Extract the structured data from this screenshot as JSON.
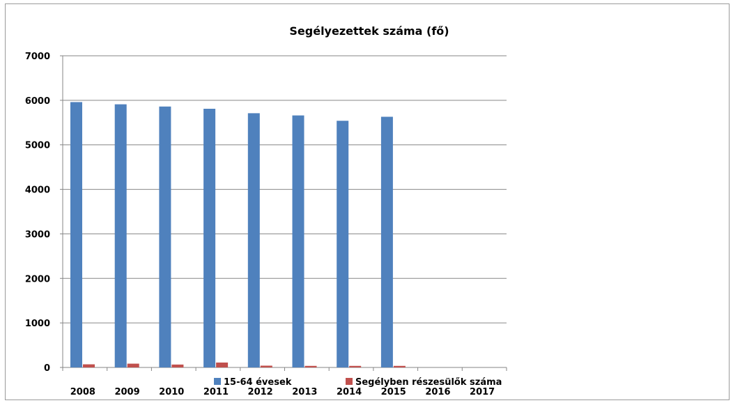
{
  "chart_data": {
    "type": "bar",
    "title": "Segélyezettek száma (fő)",
    "xlabel": "",
    "ylabel": "",
    "categories": [
      "2008",
      "2009",
      "2010",
      "2011",
      "2012",
      "2013",
      "2014",
      "2015",
      "2016",
      "2017"
    ],
    "ylim": [
      0,
      7000
    ],
    "yticks": [
      "0",
      "1000",
      "2000",
      "3000",
      "4000",
      "5000",
      "6000",
      "7000"
    ],
    "grid": true,
    "legend_position": "bottom",
    "series": [
      {
        "name": "15-64 évesek",
        "color": "#4f81bd",
        "values": [
          5960,
          5910,
          5860,
          5810,
          5710,
          5660,
          5540,
          5630,
          null,
          null
        ]
      },
      {
        "name": "Segélyben részesülők száma",
        "color": "#c0504d",
        "values": [
          70,
          85,
          65,
          110,
          40,
          35,
          35,
          35,
          null,
          null
        ]
      }
    ]
  }
}
